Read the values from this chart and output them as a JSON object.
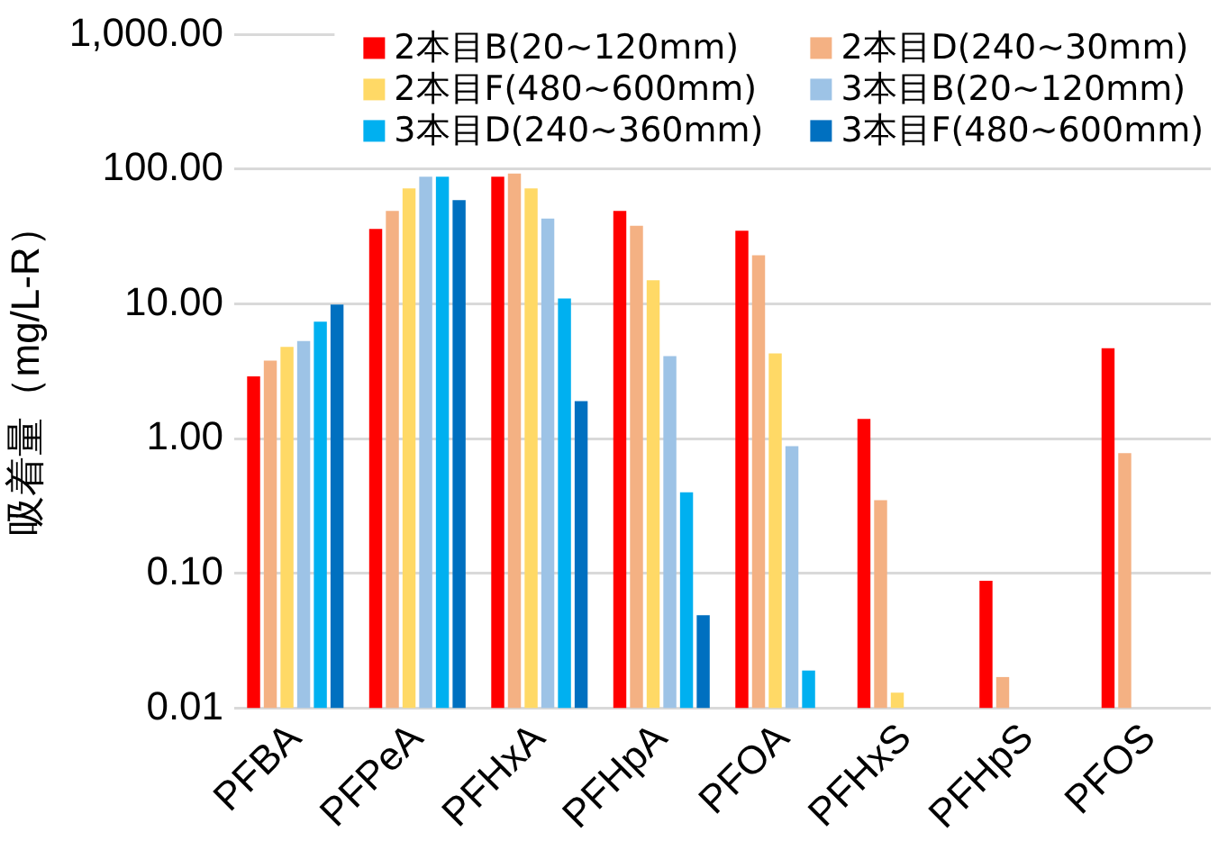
{
  "chart_data": {
    "type": "bar",
    "ylabel": "吸着量（mg/L-R）",
    "categories": [
      "PFBA",
      "PFPeA",
      "PFHxA",
      "PFHpA",
      "PFOA",
      "PFHxS",
      "PFHpS",
      "PFOS"
    ],
    "series": [
      {
        "name": "2本目B(20~120mm)",
        "color": "#ff0000",
        "values": [
          2.9,
          36,
          88,
          49,
          35,
          1.4,
          0.088,
          4.7
        ]
      },
      {
        "name": "2本目D(240~30mm)",
        "color": "#f4b183",
        "values": [
          3.8,
          49,
          93,
          38,
          23,
          0.35,
          0.017,
          0.78
        ]
      },
      {
        "name": "2本目F(480~600mm)",
        "color": "#ffd966",
        "values": [
          4.8,
          72,
          72,
          15,
          4.3,
          0.013,
          null,
          null
        ]
      },
      {
        "name": "3本目B(20~120mm)",
        "color": "#9dc3e6",
        "values": [
          5.3,
          88,
          43,
          4.1,
          0.88,
          null,
          null,
          null
        ]
      },
      {
        "name": "3本目D(240~360mm)",
        "color": "#00b0f0",
        "values": [
          7.4,
          88,
          11,
          0.4,
          0.019,
          null,
          null,
          null
        ]
      },
      {
        "name": "3本目F(480~600mm)",
        "color": "#0070c0",
        "values": [
          9.9,
          59,
          1.9,
          0.049,
          null,
          null,
          null,
          null
        ]
      }
    ],
    "ylim": [
      0.01,
      1000
    ],
    "yticks": [
      0.01,
      {
        "value": 0.1,
        "label": "0.10"
      },
      {
        "value": 1,
        "label": "1.00"
      },
      {
        "value": 10,
        "label": "10.00"
      },
      {
        "value": 100,
        "label": "100.00"
      },
      {
        "value": 1000,
        "label": "1,000.00"
      }
    ],
    "log": true,
    "grid": "y",
    "legend": "top right"
  }
}
